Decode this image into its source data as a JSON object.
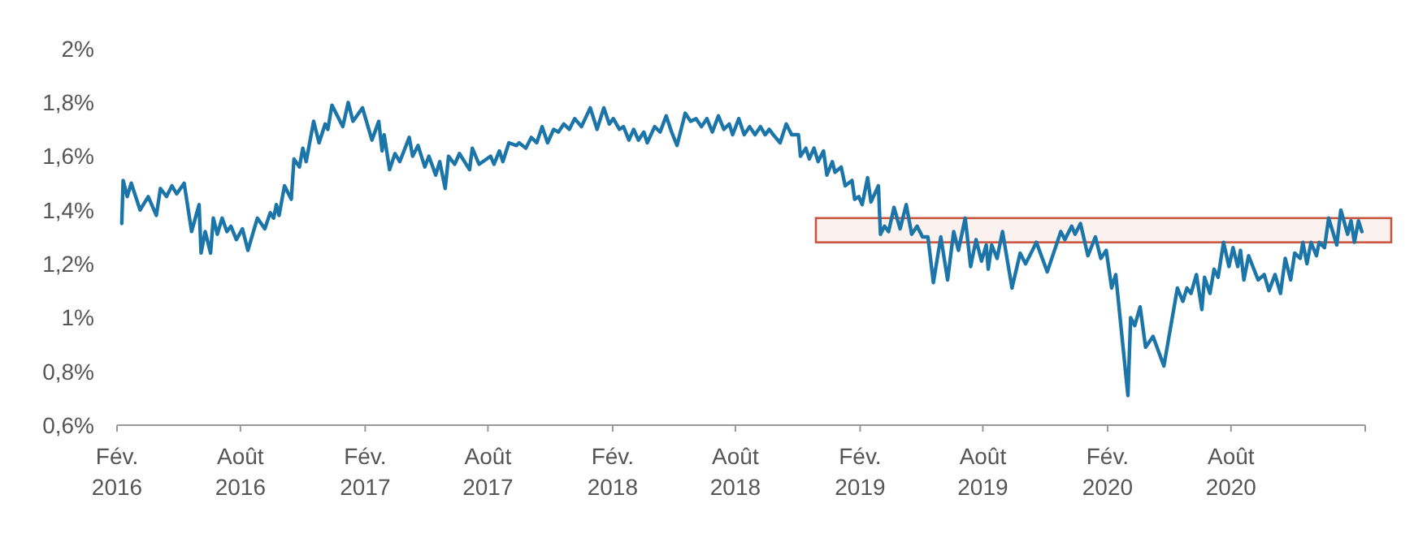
{
  "chart_data": {
    "type": "line",
    "x": [
      "2016-02-08",
      "2016-02-10",
      "2016-02-16",
      "2016-02-22",
      "2016-03-06",
      "2016-03-18",
      "2016-03-30",
      "2016-04-05",
      "2016-04-14",
      "2016-04-22",
      "2016-04-29",
      "2016-05-10",
      "2016-05-21",
      "2016-06-01",
      "2016-06-04",
      "2016-06-10",
      "2016-06-18",
      "2016-06-22",
      "2016-06-28",
      "2016-07-05",
      "2016-07-12",
      "2016-07-18",
      "2016-07-26",
      "2016-08-04",
      "2016-08-12",
      "2016-08-26",
      "2016-09-06",
      "2016-09-14",
      "2016-09-19",
      "2016-09-23",
      "2016-09-27",
      "2016-10-05",
      "2016-10-15",
      "2016-10-19",
      "2016-10-27",
      "2016-11-01",
      "2016-11-06",
      "2016-11-17",
      "2016-11-25",
      "2016-12-04",
      "2016-12-08",
      "2016-12-14",
      "2016-12-30",
      "2017-01-07",
      "2017-01-14",
      "2017-01-28",
      "2017-02-11",
      "2017-02-21",
      "2017-02-26",
      "2017-03-01",
      "2017-03-09",
      "2017-03-17",
      "2017-03-24",
      "2017-04-07",
      "2017-04-12",
      "2017-04-20",
      "2017-04-30",
      "2017-05-06",
      "2017-05-16",
      "2017-05-22",
      "2017-05-30",
      "2017-06-04",
      "2017-06-13",
      "2017-06-20",
      "2017-07-05",
      "2017-07-09",
      "2017-07-19",
      "2017-08-05",
      "2017-08-10",
      "2017-08-18",
      "2017-08-23",
      "2017-09-01",
      "2017-09-12",
      "2017-09-16",
      "2017-09-26",
      "2017-10-04",
      "2017-10-12",
      "2017-10-20",
      "2017-10-28",
      "2017-11-06",
      "2017-11-13",
      "2017-11-21",
      "2017-11-29",
      "2017-12-07",
      "2017-12-17",
      "2017-12-30",
      "2018-01-09",
      "2018-01-19",
      "2018-01-27",
      "2018-02-02",
      "2018-02-11",
      "2018-02-17",
      "2018-02-25",
      "2018-03-04",
      "2018-03-11",
      "2018-03-19",
      "2018-03-24",
      "2018-04-04",
      "2018-04-12",
      "2018-04-21",
      "2018-04-29",
      "2018-05-07",
      "2018-05-19",
      "2018-05-27",
      "2018-06-04",
      "2018-06-12",
      "2018-06-20",
      "2018-06-28",
      "2018-07-07",
      "2018-07-15",
      "2018-07-23",
      "2018-07-28",
      "2018-08-06",
      "2018-08-14",
      "2018-08-22",
      "2018-08-30",
      "2018-09-07",
      "2018-09-14",
      "2018-09-20",
      "2018-09-26",
      "2018-10-06",
      "2018-10-15",
      "2018-10-23",
      "2018-11-02",
      "2018-11-05",
      "2018-11-13",
      "2018-11-18",
      "2018-11-25",
      "2018-12-01",
      "2018-12-09",
      "2018-12-14",
      "2018-12-22",
      "2018-12-26",
      "2019-01-04",
      "2019-01-10",
      "2019-01-20",
      "2019-01-24",
      "2019-01-30",
      "2019-02-04",
      "2019-02-12",
      "2019-02-17",
      "2019-02-28",
      "2019-03-03",
      "2019-03-09",
      "2019-03-15",
      "2019-03-23",
      "2019-04-01",
      "2019-04-10",
      "2019-04-18",
      "2019-04-26",
      "2019-05-04",
      "2019-05-12",
      "2019-05-20",
      "2019-05-31",
      "2019-06-10",
      "2019-06-19",
      "2019-06-26",
      "2019-07-06",
      "2019-07-14",
      "2019-07-22",
      "2019-07-30",
      "2019-08-06",
      "2019-08-09",
      "2019-08-14",
      "2019-08-22",
      "2019-08-30",
      "2019-09-13",
      "2019-09-25",
      "2019-10-03",
      "2019-10-19",
      "2019-11-04",
      "2019-11-24",
      "2019-11-30",
      "2019-12-10",
      "2019-12-15",
      "2019-12-23",
      "2020-01-03",
      "2020-01-14",
      "2020-01-22",
      "2020-01-30",
      "2020-02-07",
      "2020-02-13",
      "2020-03-02",
      "2020-03-06",
      "2020-03-12",
      "2020-03-20",
      "2020-03-28",
      "2020-04-08",
      "2020-04-24",
      "2020-05-14",
      "2020-05-22",
      "2020-05-28",
      "2020-06-03",
      "2020-06-11",
      "2020-06-19",
      "2020-06-23",
      "2020-07-01",
      "2020-07-07",
      "2020-07-13",
      "2020-07-21",
      "2020-07-29",
      "2020-08-04",
      "2020-08-11",
      "2020-08-15",
      "2020-08-20",
      "2020-08-27",
      "2020-09-10",
      "2020-09-19",
      "2020-09-26",
      "2020-10-05",
      "2020-10-13",
      "2020-10-20",
      "2020-10-28",
      "2020-11-03",
      "2020-11-11",
      "2020-11-15",
      "2020-11-21",
      "2020-11-27",
      "2020-12-05",
      "2020-12-09",
      "2020-12-17",
      "2020-12-23",
      "2021-01-04",
      "2021-01-10",
      "2021-01-20",
      "2021-01-25",
      "2021-01-30",
      "2021-02-05",
      "2021-02-10"
    ],
    "series": [
      {
        "color": "#1b75a8",
        "values": [
          1.35,
          1.51,
          1.45,
          1.5,
          1.4,
          1.45,
          1.38,
          1.48,
          1.45,
          1.49,
          1.46,
          1.5,
          1.32,
          1.42,
          1.24,
          1.32,
          1.24,
          1.37,
          1.31,
          1.37,
          1.32,
          1.34,
          1.29,
          1.33,
          1.25,
          1.37,
          1.33,
          1.39,
          1.37,
          1.42,
          1.38,
          1.49,
          1.44,
          1.59,
          1.56,
          1.63,
          1.58,
          1.73,
          1.65,
          1.72,
          1.7,
          1.79,
          1.71,
          1.8,
          1.73,
          1.78,
          1.66,
          1.73,
          1.62,
          1.68,
          1.55,
          1.61,
          1.58,
          1.67,
          1.6,
          1.64,
          1.56,
          1.6,
          1.53,
          1.58,
          1.48,
          1.6,
          1.57,
          1.61,
          1.55,
          1.63,
          1.57,
          1.6,
          1.57,
          1.62,
          1.58,
          1.65,
          1.64,
          1.65,
          1.63,
          1.67,
          1.65,
          1.71,
          1.65,
          1.7,
          1.69,
          1.72,
          1.7,
          1.74,
          1.71,
          1.78,
          1.7,
          1.78,
          1.72,
          1.74,
          1.7,
          1.71,
          1.66,
          1.7,
          1.66,
          1.69,
          1.65,
          1.71,
          1.69,
          1.75,
          1.69,
          1.64,
          1.76,
          1.73,
          1.74,
          1.71,
          1.74,
          1.69,
          1.75,
          1.7,
          1.72,
          1.68,
          1.74,
          1.68,
          1.71,
          1.68,
          1.71,
          1.68,
          1.7,
          1.68,
          1.65,
          1.72,
          1.68,
          1.68,
          1.6,
          1.63,
          1.59,
          1.63,
          1.58,
          1.62,
          1.53,
          1.58,
          1.54,
          1.56,
          1.49,
          1.51,
          1.44,
          1.45,
          1.42,
          1.52,
          1.43,
          1.49,
          1.31,
          1.34,
          1.32,
          1.41,
          1.33,
          1.42,
          1.31,
          1.34,
          1.3,
          1.3,
          1.13,
          1.3,
          1.14,
          1.32,
          1.25,
          1.37,
          1.19,
          1.29,
          1.21,
          1.27,
          1.18,
          1.27,
          1.22,
          1.32,
          1.11,
          1.24,
          1.2,
          1.28,
          1.17,
          1.32,
          1.29,
          1.34,
          1.31,
          1.35,
          1.23,
          1.3,
          1.22,
          1.25,
          1.11,
          1.16,
          0.71,
          1.0,
          0.97,
          1.04,
          0.89,
          0.93,
          0.82,
          1.11,
          1.06,
          1.11,
          1.09,
          1.16,
          1.03,
          1.15,
          1.09,
          1.18,
          1.15,
          1.28,
          1.19,
          1.26,
          1.19,
          1.25,
          1.14,
          1.23,
          1.14,
          1.16,
          1.1,
          1.16,
          1.09,
          1.22,
          1.14,
          1.24,
          1.22,
          1.28,
          1.2,
          1.28,
          1.23,
          1.28,
          1.26,
          1.37,
          1.27,
          1.4,
          1.31,
          1.36,
          1.28,
          1.36,
          1.32
        ]
      }
    ],
    "xlim": [
      "2016-02-01",
      "2021-02-15"
    ],
    "xticks": [
      {
        "value": "2016-02-01",
        "label": "Fév.\n2016"
      },
      {
        "value": "2016-08-01",
        "label": "Août\n2016"
      },
      {
        "value": "2017-02-01",
        "label": "Fév.\n2017"
      },
      {
        "value": "2017-08-01",
        "label": "Août\n2017"
      },
      {
        "value": "2018-02-01",
        "label": "Fév.\n2018"
      },
      {
        "value": "2018-08-01",
        "label": "Août\n2018"
      },
      {
        "value": "2019-02-01",
        "label": "Fév.\n2019"
      },
      {
        "value": "2019-08-01",
        "label": "Août\n2019"
      },
      {
        "value": "2020-02-01",
        "label": "Fév.\n2020"
      },
      {
        "value": "2020-08-01",
        "label": "Août\n2020"
      },
      {
        "value": "2021-02-15",
        "label": null
      }
    ],
    "ylim": [
      0.6,
      2
    ],
    "yticks": [
      {
        "value": 0.6,
        "label": "0,6%"
      },
      {
        "value": 0.8,
        "label": "0,8%"
      },
      {
        "value": 1,
        "label": "1%"
      },
      {
        "value": 1.2,
        "label": "1,2%"
      },
      {
        "value": 1.4,
        "label": "1,4%"
      },
      {
        "value": 1.6,
        "label": "1,6%"
      },
      {
        "value": 1.8,
        "label": "1,8%"
      },
      {
        "value": 2,
        "label": "2%"
      }
    ],
    "bands": [
      {
        "axis": "y",
        "from": 1.28,
        "to": 1.37,
        "color": "#c8553d"
      }
    ],
    "grid": false
  }
}
